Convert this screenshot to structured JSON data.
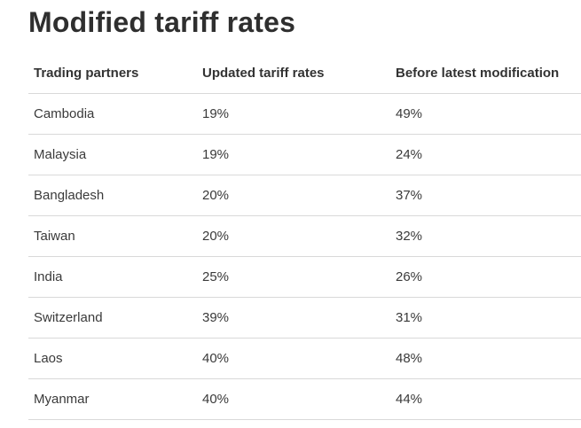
{
  "title": "Modified tariff rates",
  "chart_data": {
    "type": "table",
    "title": "Modified tariff rates",
    "columns": [
      "Trading partners",
      "Updated tariff rates",
      "Before latest modification"
    ],
    "rows": [
      [
        "Cambodia",
        "19%",
        "49%"
      ],
      [
        "Malaysia",
        "19%",
        "24%"
      ],
      [
        "Bangladesh",
        "20%",
        "37%"
      ],
      [
        "Taiwan",
        "20%",
        "32%"
      ],
      [
        "India",
        "25%",
        "26%"
      ],
      [
        "Switzerland",
        "39%",
        "31%"
      ],
      [
        "Laos",
        "40%",
        "48%"
      ],
      [
        "Myanmar",
        "40%",
        "44%"
      ]
    ]
  }
}
